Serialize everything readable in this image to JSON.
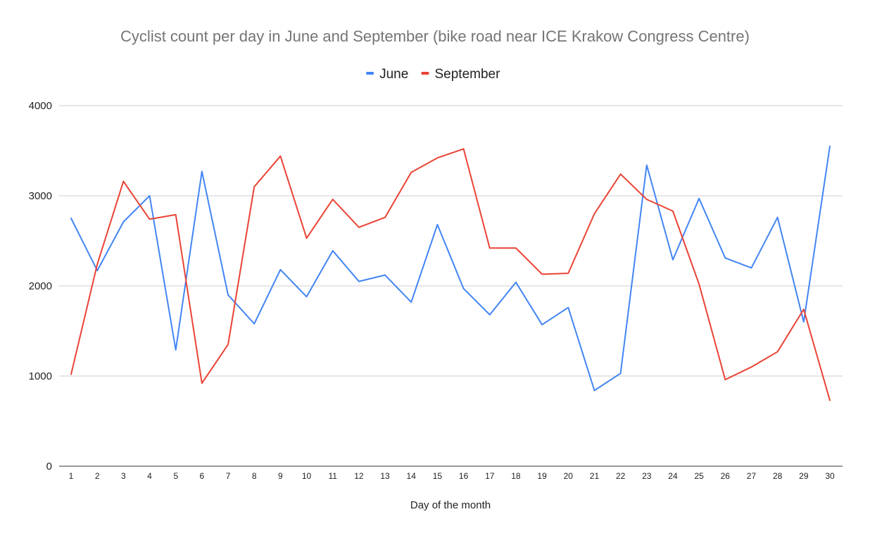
{
  "chart_data": {
    "type": "line",
    "title": "Cyclist count per day in June and September (bike road near ICE Krakow Congress Centre)",
    "xlabel": "Day of the month",
    "ylabel": "",
    "ylim": [
      0,
      4000
    ],
    "yticks": [
      0,
      1000,
      2000,
      3000,
      4000
    ],
    "grid": true,
    "legend_position": "top",
    "categories": [
      1,
      2,
      3,
      4,
      5,
      6,
      7,
      8,
      9,
      10,
      11,
      12,
      13,
      14,
      15,
      16,
      17,
      18,
      19,
      20,
      21,
      22,
      23,
      24,
      25,
      26,
      27,
      28,
      29,
      30
    ],
    "series": [
      {
        "name": "June",
        "color": "#4285f4",
        "values": [
          2750,
          2170,
          2710,
          3000,
          1290,
          3270,
          1900,
          1580,
          2180,
          1880,
          2390,
          2050,
          2120,
          1820,
          2680,
          1970,
          1680,
          2040,
          1570,
          1760,
          840,
          1030,
          3340,
          2290,
          2970,
          2310,
          2200,
          2760,
          1600,
          3550
        ]
      },
      {
        "name": "September",
        "color": "#ea4335",
        "values": [
          1020,
          2240,
          3160,
          2740,
          2790,
          920,
          1350,
          3100,
          3440,
          2530,
          2960,
          2650,
          2760,
          3260,
          3420,
          3520,
          2420,
          2420,
          2130,
          2140,
          2800,
          3240,
          2960,
          2830,
          2020,
          960,
          1100,
          1270,
          1740,
          730
        ]
      }
    ]
  }
}
